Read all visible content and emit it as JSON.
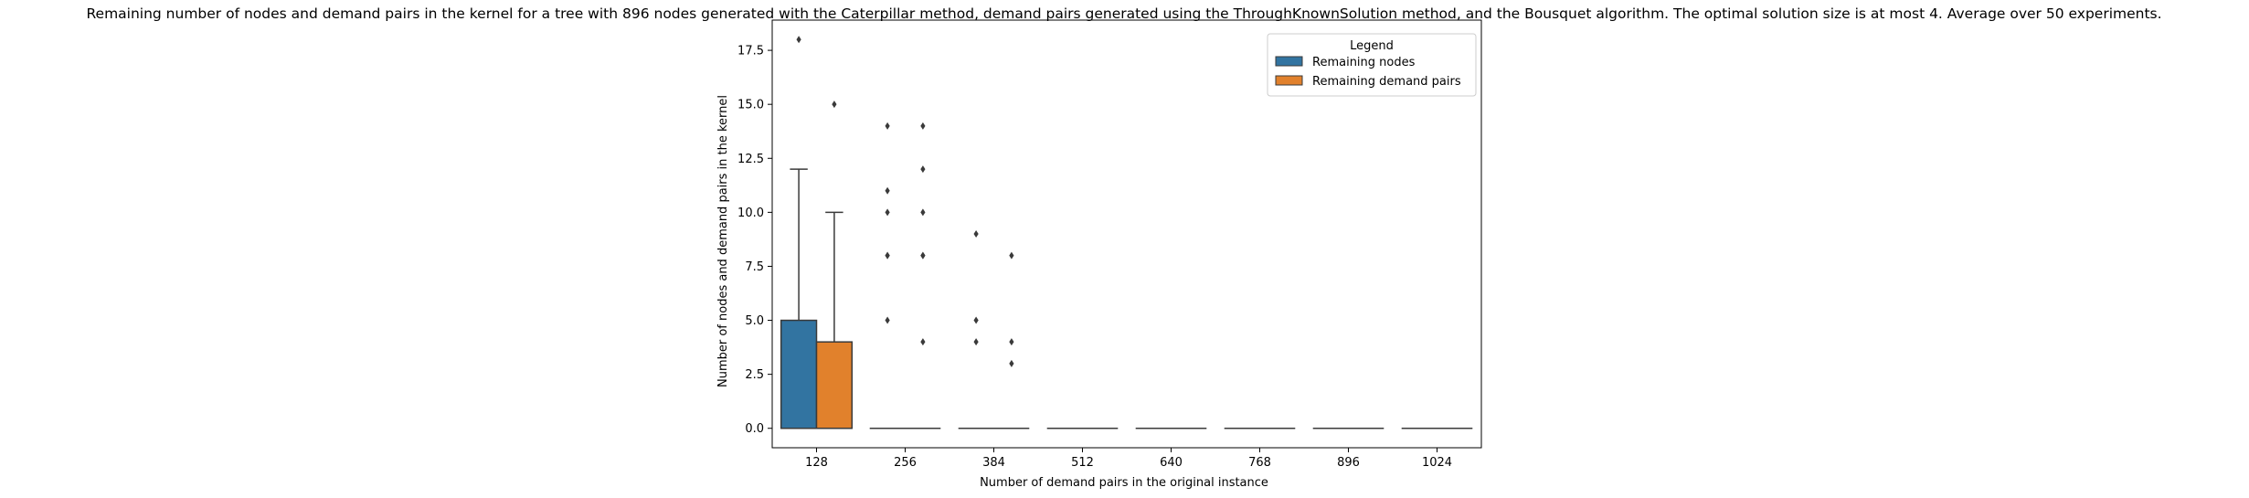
{
  "chart_data": {
    "type": "box",
    "title": "Remaining number of nodes and demand pairs in the kernel for a tree with 896 nodes generated with the Caterpillar method, demand pairs generated using the ThroughKnownSolution method, and the Bousquet algorithm. The optimal solution size is at most 4. Average over 50 experiments.",
    "xlabel": "Number of demand pairs in the original instance",
    "ylabel": "Number of nodes and demand pairs in the kernel",
    "categories": [
      "128",
      "256",
      "384",
      "512",
      "640",
      "768",
      "896",
      "1024"
    ],
    "ylim": [
      -0.9,
      18.9
    ],
    "yticks": [
      0.0,
      2.5,
      5.0,
      7.5,
      10.0,
      12.5,
      15.0,
      17.5
    ],
    "ytick_labels": [
      "0.0",
      "2.5",
      "5.0",
      "7.5",
      "10.0",
      "12.5",
      "15.0",
      "17.5"
    ],
    "grid": false,
    "legend": {
      "title": "Legend",
      "position": "top-right"
    },
    "series": [
      {
        "name": "Remaining nodes",
        "color": "#3274a1",
        "boxes": [
          {
            "q1": 0,
            "median": 0,
            "q3": 5,
            "whislo": 0,
            "whishi": 12,
            "fliers": [
              18
            ]
          },
          {
            "q1": 0,
            "median": 0,
            "q3": 0,
            "whislo": 0,
            "whishi": 0,
            "fliers": [
              5,
              8,
              8,
              10,
              11,
              14
            ]
          },
          {
            "q1": 0,
            "median": 0,
            "q3": 0,
            "whislo": 0,
            "whishi": 0,
            "fliers": [
              4,
              5,
              9
            ]
          },
          {
            "q1": 0,
            "median": 0,
            "q3": 0,
            "whislo": 0,
            "whishi": 0,
            "fliers": []
          },
          {
            "q1": 0,
            "median": 0,
            "q3": 0,
            "whislo": 0,
            "whishi": 0,
            "fliers": []
          },
          {
            "q1": 0,
            "median": 0,
            "q3": 0,
            "whislo": 0,
            "whishi": 0,
            "fliers": []
          },
          {
            "q1": 0,
            "median": 0,
            "q3": 0,
            "whislo": 0,
            "whishi": 0,
            "fliers": []
          },
          {
            "q1": 0,
            "median": 0,
            "q3": 0,
            "whislo": 0,
            "whishi": 0,
            "fliers": []
          }
        ]
      },
      {
        "name": "Remaining demand pairs",
        "color": "#e1812c",
        "boxes": [
          {
            "q1": 0,
            "median": 0,
            "q3": 4,
            "whislo": 0,
            "whishi": 10,
            "fliers": [
              15
            ]
          },
          {
            "q1": 0,
            "median": 0,
            "q3": 0,
            "whislo": 0,
            "whishi": 0,
            "fliers": [
              4,
              8,
              8,
              10,
              12,
              14
            ]
          },
          {
            "q1": 0,
            "median": 0,
            "q3": 0,
            "whislo": 0,
            "whishi": 0,
            "fliers": [
              3,
              4,
              8
            ]
          },
          {
            "q1": 0,
            "median": 0,
            "q3": 0,
            "whislo": 0,
            "whishi": 0,
            "fliers": []
          },
          {
            "q1": 0,
            "median": 0,
            "q3": 0,
            "whislo": 0,
            "whishi": 0,
            "fliers": []
          },
          {
            "q1": 0,
            "median": 0,
            "q3": 0,
            "whislo": 0,
            "whishi": 0,
            "fliers": []
          },
          {
            "q1": 0,
            "median": 0,
            "q3": 0,
            "whislo": 0,
            "whishi": 0,
            "fliers": []
          },
          {
            "q1": 0,
            "median": 0,
            "q3": 0,
            "whislo": 0,
            "whishi": 0,
            "fliers": []
          }
        ]
      }
    ]
  }
}
